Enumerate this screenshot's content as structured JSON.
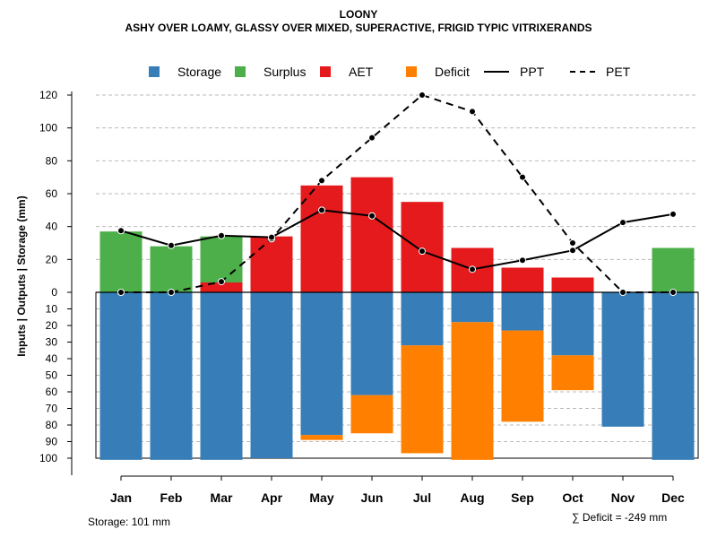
{
  "title": "LOONY",
  "subtitle": "ASHY OVER LOAMY, GLASSY OVER MIXED, SUPERACTIVE, FRIGID TYPIC VITRIXERANDS",
  "legend": {
    "storage": "Storage",
    "surplus": "Surplus",
    "aet": "AET",
    "deficit": "Deficit",
    "ppt": "PPT",
    "pet": "PET"
  },
  "colors": {
    "storage": "#377EB8",
    "surplus": "#4DAF4A",
    "aet": "#E41A1C",
    "deficit": "#FF7F00",
    "ppt": "#000000",
    "pet": "#000000"
  },
  "footer": {
    "storage_text": "Storage: 101 mm",
    "deficit_text": "∑ Deficit = -249 mm"
  },
  "chart_data": {
    "type": "bar",
    "title": "LOONY",
    "subtitle": "ASHY OVER LOAMY, GLASSY OVER MIXED, SUPERACTIVE, FRIGID TYPIC VITRIXERANDS",
    "ylabel": "Inputs | Outputs | Storage    (mm)",
    "xlabel": "",
    "categories": [
      "Jan",
      "Feb",
      "Mar",
      "Apr",
      "May",
      "Jun",
      "Jul",
      "Aug",
      "Sep",
      "Oct",
      "Nov",
      "Dec"
    ],
    "upper_ylim": [
      0,
      120
    ],
    "upper_ticks": [
      "0",
      "20",
      "40",
      "60",
      "80",
      "100",
      "120"
    ],
    "lower_ylim": [
      0,
      100
    ],
    "lower_ticks": [
      "0",
      "10",
      "20",
      "30",
      "40",
      "50",
      "60",
      "70",
      "80",
      "90",
      "100"
    ],
    "legend_position": "top",
    "grid": true,
    "series": [
      {
        "name": "AET",
        "kind": "bar-upper",
        "values": [
          0,
          0,
          6,
          34,
          65,
          70,
          55,
          27,
          15,
          9,
          0,
          0
        ]
      },
      {
        "name": "Surplus",
        "kind": "bar-upper",
        "values": [
          37,
          28,
          28,
          0,
          0,
          0,
          0,
          0,
          0,
          0,
          0,
          27
        ]
      },
      {
        "name": "Storage",
        "kind": "bar-lower",
        "values": [
          101,
          101,
          101,
          100,
          86,
          62,
          32,
          18,
          23,
          38,
          81,
          101
        ]
      },
      {
        "name": "Deficit",
        "kind": "bar-lower",
        "values": [
          0,
          0,
          0,
          0,
          3,
          23,
          65,
          83,
          55,
          21,
          0,
          0
        ]
      },
      {
        "name": "PPT",
        "kind": "line-solid",
        "values": [
          37.5,
          28.5,
          34.5,
          33.5,
          50,
          46.5,
          25,
          14,
          19.5,
          25.5,
          42.5,
          47.5
        ]
      },
      {
        "name": "PET",
        "kind": "line-dashed",
        "values": [
          0,
          0,
          6.5,
          32.5,
          68,
          94,
          120,
          110,
          70,
          30,
          0,
          0
        ]
      }
    ]
  }
}
